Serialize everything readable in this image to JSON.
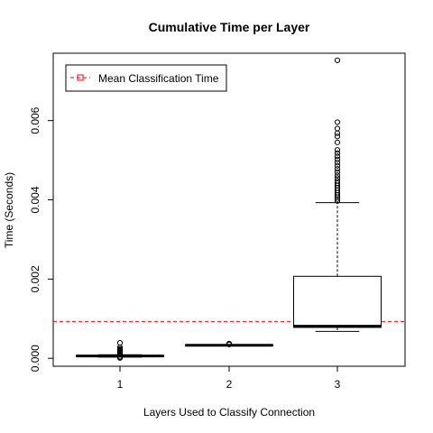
{
  "chart_data": {
    "type": "box",
    "title": "Cumulative Time per Layer",
    "xlabel": "Layers Used to Classify Connection",
    "ylabel": "Time (Seconds)",
    "categories": [
      "1",
      "2",
      "3"
    ],
    "ylim": [
      -0.0002,
      0.0077
    ],
    "yticks": [
      0.0,
      0.002,
      0.004,
      0.006
    ],
    "ytick_labels": [
      "0.000",
      "0.002",
      "0.004",
      "0.006"
    ],
    "legend": {
      "position": "top-left",
      "entries": [
        {
          "label": "Mean Classification Time",
          "color": "#ff0000",
          "style": "dashed-line-square-marker"
        }
      ]
    },
    "reference_line": {
      "y": 0.00093,
      "color": "#ff0000",
      "style": "dashed"
    },
    "boxes": [
      {
        "category": "1",
        "min": 3e-05,
        "q1": 5e-05,
        "median": 6e-05,
        "q3": 7e-05,
        "max": 9e-05,
        "outliers": [
          1e-05,
          2e-05,
          3e-05,
          4e-05,
          0.0001,
          0.00012,
          0.00014,
          0.00016,
          0.00018,
          0.0002,
          0.00022,
          0.00024,
          0.00028,
          0.00039
        ]
      },
      {
        "category": "2",
        "min": 0.00032,
        "q1": 0.00032,
        "median": 0.00033,
        "q3": 0.00034,
        "max": 0.00034,
        "outliers": [
          0.00035,
          0.00036,
          0.00037
        ]
      },
      {
        "category": "3",
        "min": 0.00068,
        "q1": 0.00078,
        "median": 0.00081,
        "q3": 0.00207,
        "max": 0.00393,
        "outliers": [
          0.00397,
          0.00402,
          0.00407,
          0.00412,
          0.00418,
          0.00424,
          0.0043,
          0.00436,
          0.00442,
          0.00448,
          0.00455,
          0.00462,
          0.0047,
          0.00478,
          0.00486,
          0.00494,
          0.00502,
          0.0051,
          0.00518,
          0.00526,
          0.00545,
          0.0056,
          0.00568,
          0.0058,
          0.00596,
          0.00752
        ]
      }
    ]
  }
}
